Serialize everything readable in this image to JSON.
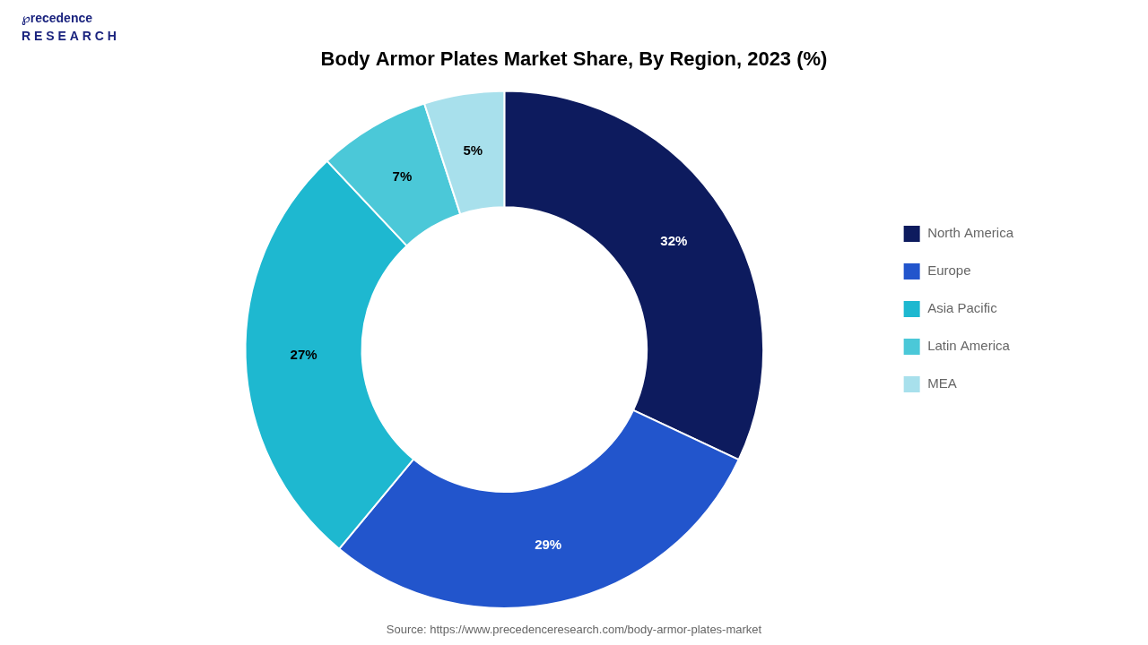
{
  "chart_data": {
    "type": "doughnut",
    "title": "Body Armor Plates Market Share, By Region, 2023 (%)",
    "categories": [
      "North America",
      "Europe",
      "Asia Pacific",
      "Latin America",
      "MEA"
    ],
    "values": [
      32,
      29,
      27,
      7,
      5
    ],
    "value_labels": [
      "32%",
      "29%",
      "27%",
      "7%",
      "5%"
    ],
    "colors": [
      "#0d1b5e",
      "#2255cc",
      "#1eb8d0",
      "#4bc8d8",
      "#a8e0ec"
    ],
    "data_labels": true,
    "legend": "right",
    "annotations": [
      "℘recedence\nR E S E A R C H",
      "Source: https://www.precedenceresearch.com/body-armor-plates-market"
    ]
  }
}
